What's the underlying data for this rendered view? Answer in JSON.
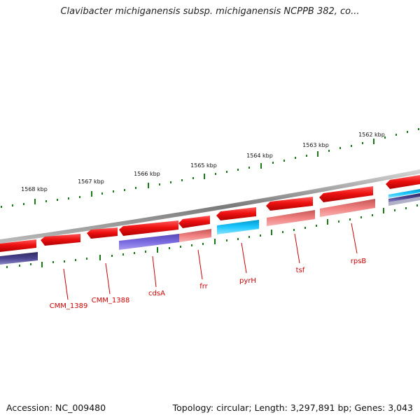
{
  "title": "Clavibacter michiganensis subsp. michiganensis NCPPB 382, co...",
  "footer": {
    "accession": "Accession: NC_009480",
    "stats": "Topology: circular; Length: 3,297,891 bp; Genes: 3,043"
  },
  "kbp_labels": [
    "1568 kbp",
    "1567 kbp",
    "1566 kbp",
    "1565 kbp",
    "1564 kbp",
    "1563 kbp",
    "1562 kbp"
  ],
  "gene_labels": [
    "CMM_1389",
    "CMM_1388",
    "cdsA",
    "frr",
    "pyrH",
    "tsf",
    "rpsB"
  ],
  "colors": {
    "cds": "#ee1111",
    "cds_light": "#f28a8a",
    "cog_purple": "#6a5acd",
    "cog_dark": "#3f3a78",
    "cog_cyan": "#00bfff",
    "cog_rose": "#d96b6b",
    "backbone": "#888888",
    "ticks": "#1a7a1a",
    "label": "#cc0000"
  }
}
